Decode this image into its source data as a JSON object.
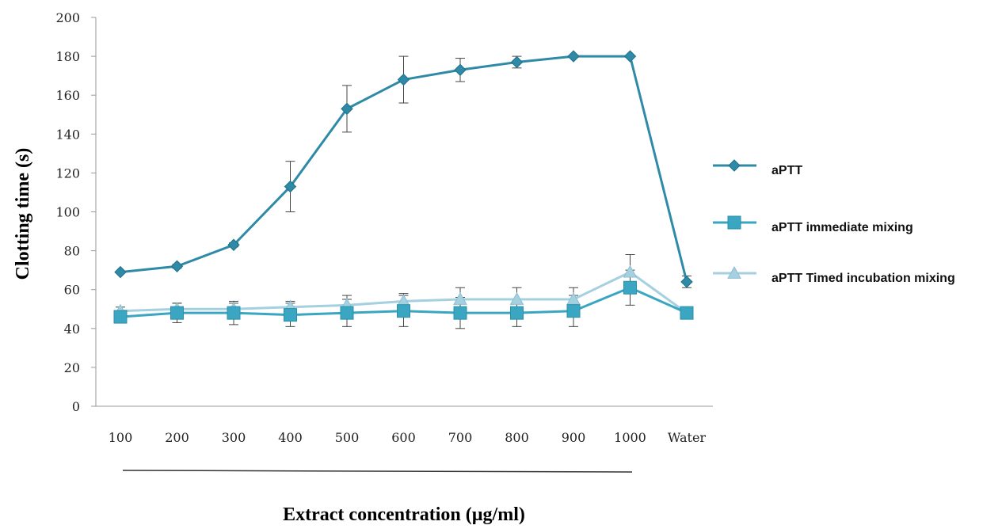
{
  "chart_data": {
    "type": "line",
    "xlabel": "Extract concentration (µg/ml)",
    "ylabel": "Clotting time (s)",
    "ylim": [
      0,
      200
    ],
    "yticks": [
      0,
      20,
      40,
      60,
      80,
      100,
      120,
      140,
      160,
      180,
      200
    ],
    "categories": [
      "100",
      "200",
      "300",
      "400",
      "500",
      "600",
      "700",
      "800",
      "900",
      "1000",
      "Water"
    ],
    "grid": false,
    "legend_position": "right",
    "series": [
      {
        "name": "aPTT",
        "color": "#2e8aa6",
        "marker": "diamond",
        "values": [
          69,
          72,
          83,
          113,
          153,
          168,
          173,
          177,
          180,
          180,
          64
        ],
        "errors": [
          0,
          1,
          1,
          13,
          12,
          12,
          6,
          3,
          0,
          0,
          3
        ]
      },
      {
        "name": "aPTT immediate mixing",
        "color": "#3aa6c2",
        "marker": "square",
        "values": [
          46,
          48,
          48,
          47,
          48,
          49,
          48,
          48,
          49,
          61,
          48
        ],
        "errors": [
          2,
          5,
          6,
          6,
          7,
          8,
          8,
          7,
          8,
          9,
          1
        ]
      },
      {
        "name": "aPTT Timed incubation mixing",
        "color": "#a4d0e0",
        "marker": "triangle",
        "values": [
          49,
          50,
          50,
          51,
          52,
          54,
          55,
          55,
          55,
          69,
          48
        ],
        "errors": [
          2,
          3,
          3,
          3,
          5,
          4,
          6,
          6,
          6,
          9,
          1
        ]
      }
    ]
  }
}
